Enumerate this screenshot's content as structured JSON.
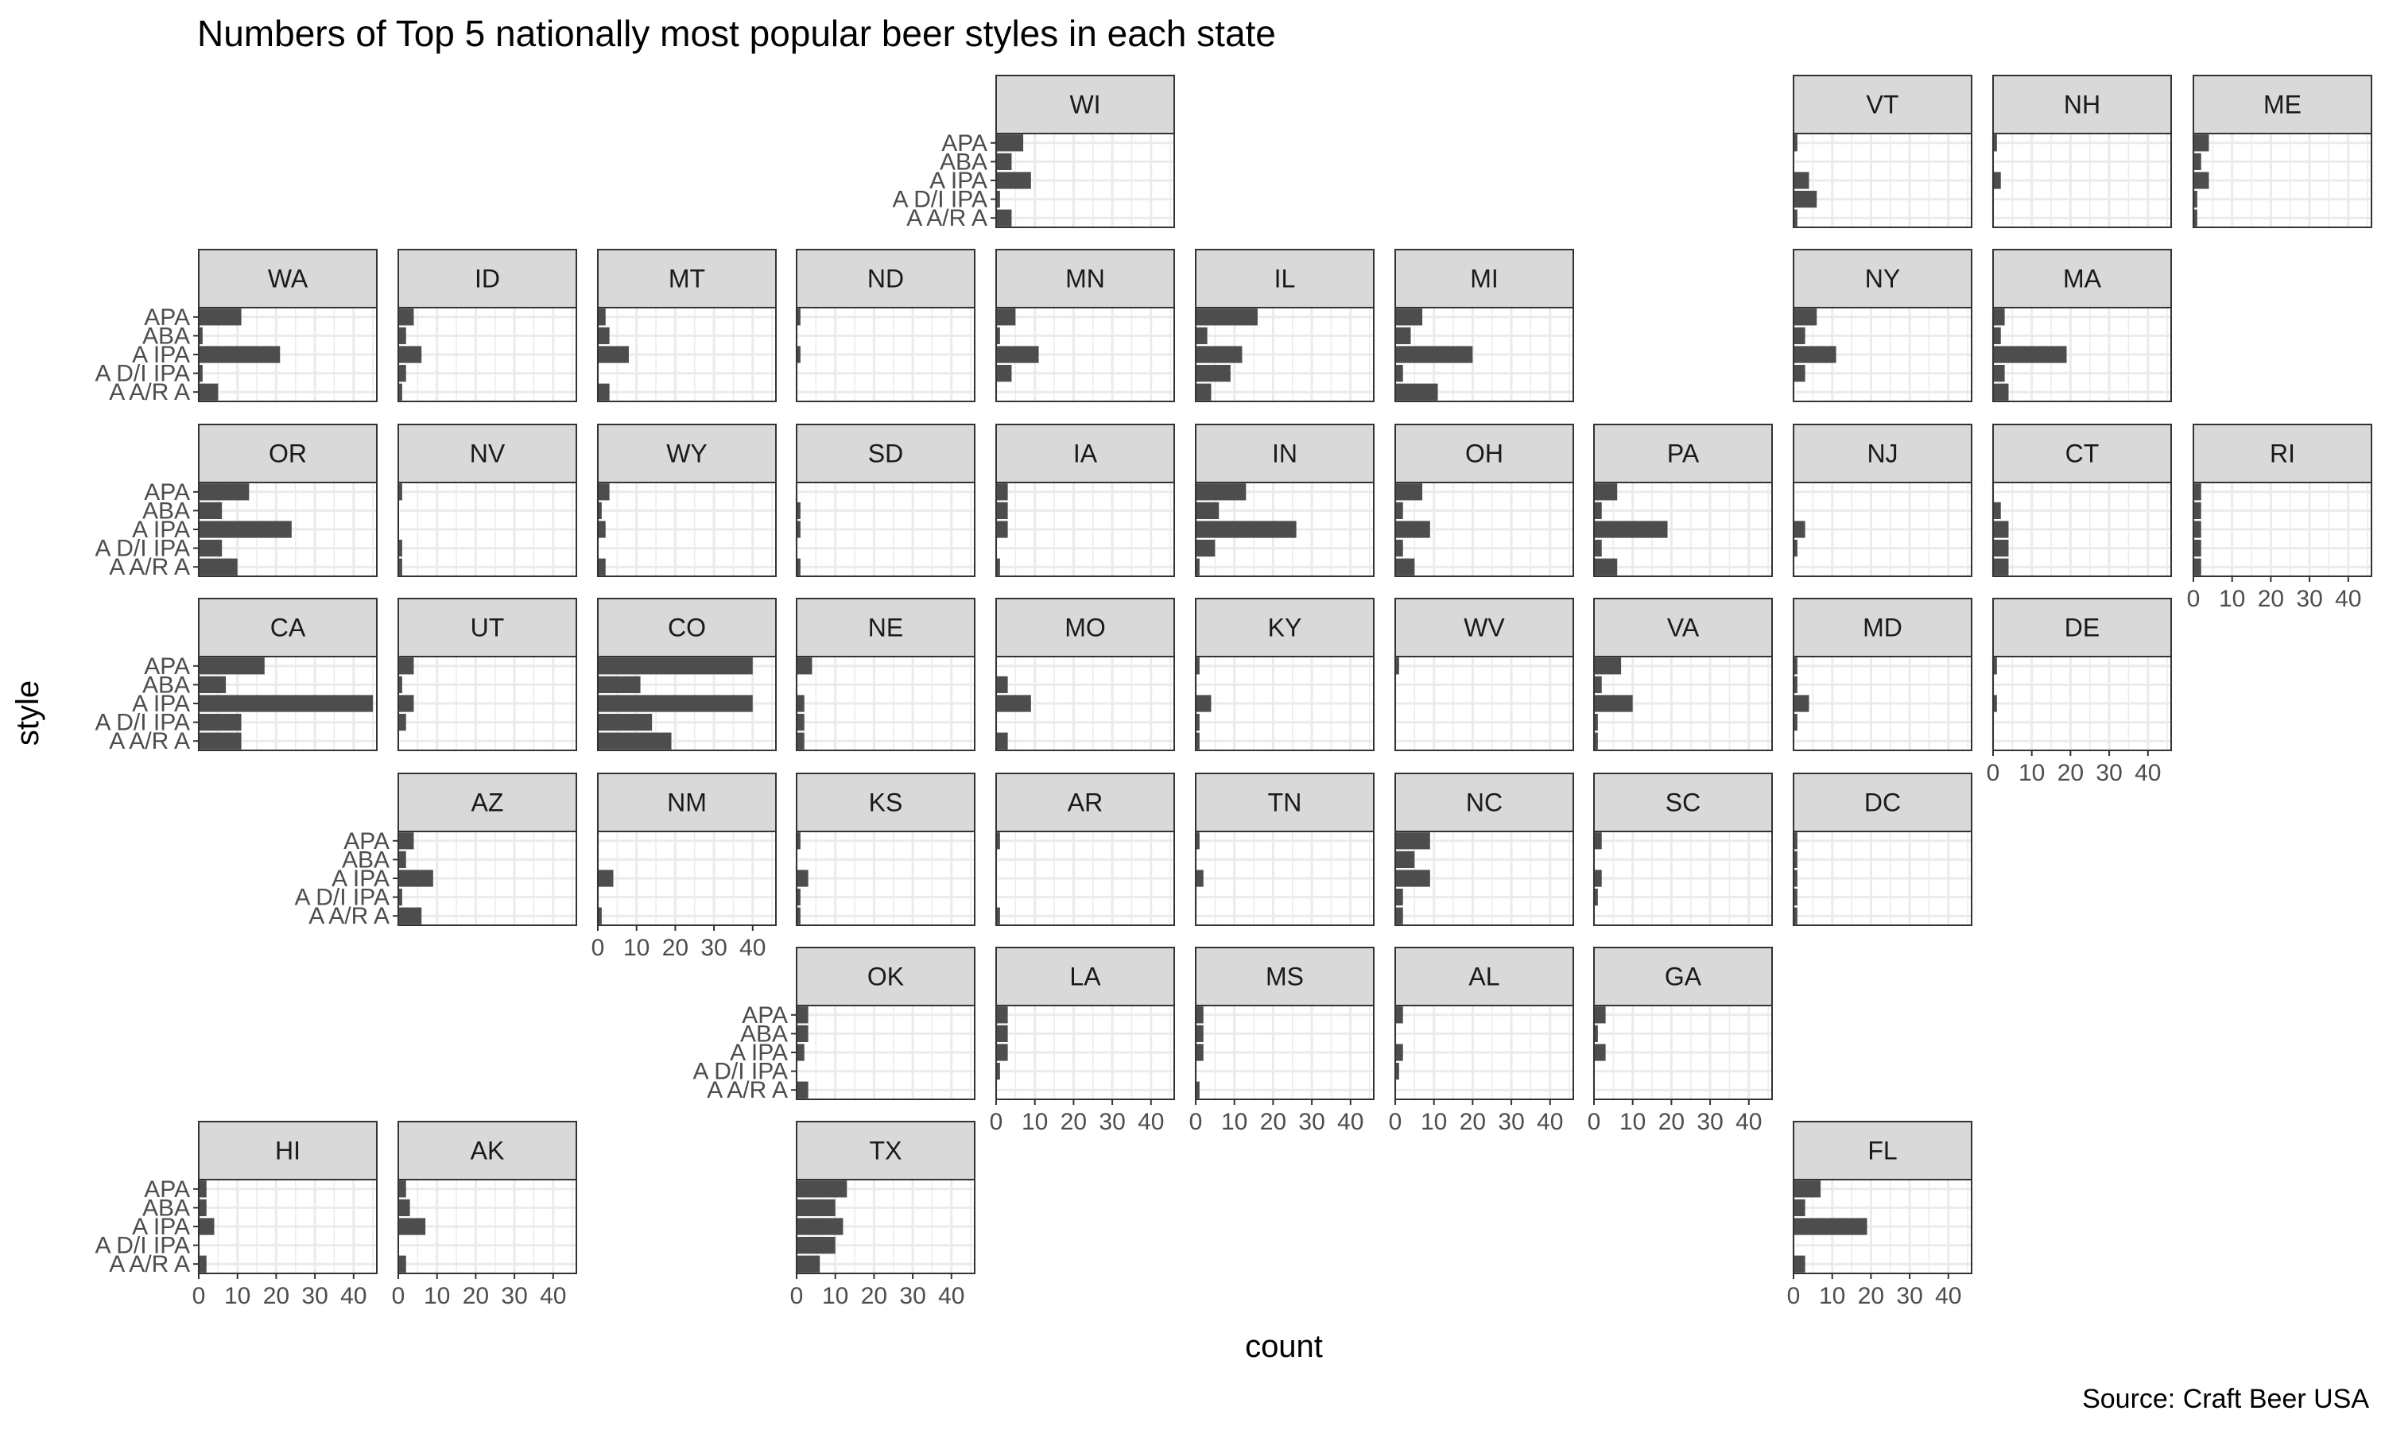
{
  "chart_data": {
    "type": "bar",
    "orientation": "horizontal",
    "layout": "facet_geo_us_states",
    "title": "Numbers of Top 5 nationally most popular beer styles in each state",
    "xlabel": "count",
    "ylabel": "style",
    "caption": "Source: Craft Beer USA",
    "xlim": [
      0,
      46
    ],
    "x_ticks": [
      0,
      10,
      20,
      30,
      40
    ],
    "x_tick_labels": [
      "0",
      "10",
      "20",
      "30",
      "40"
    ],
    "categories": [
      "APA",
      "ABA",
      "A IPA",
      "A D/I IPA",
      "A A/R A"
    ],
    "category_labels": [
      "APA",
      "ABA",
      "A IPA",
      "A D/I IPA",
      "A A/R A"
    ],
    "grid": true,
    "bar_color": "#4d4d4d",
    "strip_color": "#d9d9d9",
    "panel_border_color": "#333333",
    "grid_color": "#ebebeb",
    "panels": [
      {
        "state": "WI",
        "values": [
          7,
          4,
          9,
          1,
          4
        ]
      },
      {
        "state": "VT",
        "values": [
          1,
          0,
          4,
          6,
          1
        ]
      },
      {
        "state": "NH",
        "values": [
          1,
          0,
          2,
          0,
          0
        ]
      },
      {
        "state": "ME",
        "values": [
          4,
          2,
          4,
          1,
          1
        ]
      },
      {
        "state": "WA",
        "values": [
          11,
          1,
          21,
          1,
          5
        ]
      },
      {
        "state": "ID",
        "values": [
          4,
          2,
          6,
          2,
          1
        ]
      },
      {
        "state": "MT",
        "values": [
          2,
          3,
          8,
          0,
          3
        ]
      },
      {
        "state": "ND",
        "values": [
          1,
          0,
          1,
          0,
          0
        ]
      },
      {
        "state": "MN",
        "values": [
          5,
          1,
          11,
          4,
          0
        ]
      },
      {
        "state": "IL",
        "values": [
          16,
          3,
          12,
          9,
          4
        ]
      },
      {
        "state": "MI",
        "values": [
          7,
          4,
          20,
          2,
          11
        ]
      },
      {
        "state": "NY",
        "values": [
          6,
          3,
          11,
          3,
          0
        ]
      },
      {
        "state": "MA",
        "values": [
          3,
          2,
          19,
          3,
          4
        ]
      },
      {
        "state": "OR",
        "values": [
          13,
          6,
          24,
          6,
          10
        ]
      },
      {
        "state": "NV",
        "values": [
          1,
          0,
          0,
          1,
          1
        ]
      },
      {
        "state": "WY",
        "values": [
          3,
          1,
          2,
          0,
          2
        ]
      },
      {
        "state": "SD",
        "values": [
          0,
          1,
          1,
          0,
          1
        ]
      },
      {
        "state": "IA",
        "values": [
          3,
          3,
          3,
          0,
          1
        ]
      },
      {
        "state": "IN",
        "values": [
          13,
          6,
          26,
          5,
          1
        ]
      },
      {
        "state": "OH",
        "values": [
          7,
          2,
          9,
          2,
          5
        ]
      },
      {
        "state": "PA",
        "values": [
          6,
          2,
          19,
          2,
          6
        ]
      },
      {
        "state": "NJ",
        "values": [
          0,
          0,
          3,
          1,
          0
        ]
      },
      {
        "state": "CT",
        "values": [
          0,
          2,
          4,
          4,
          4
        ]
      },
      {
        "state": "RI",
        "values": [
          2,
          2,
          2,
          2,
          2
        ]
      },
      {
        "state": "CA",
        "values": [
          17,
          7,
          45,
          11,
          11
        ]
      },
      {
        "state": "UT",
        "values": [
          4,
          1,
          4,
          2,
          0
        ]
      },
      {
        "state": "CO",
        "values": [
          40,
          11,
          40,
          14,
          19
        ]
      },
      {
        "state": "NE",
        "values": [
          4,
          0,
          2,
          2,
          2
        ]
      },
      {
        "state": "MO",
        "values": [
          0,
          3,
          9,
          0,
          3
        ]
      },
      {
        "state": "KY",
        "values": [
          1,
          0,
          4,
          1,
          1
        ]
      },
      {
        "state": "WV",
        "values": [
          1,
          0,
          0,
          0,
          0
        ]
      },
      {
        "state": "VA",
        "values": [
          7,
          2,
          10,
          1,
          1
        ]
      },
      {
        "state": "MD",
        "values": [
          1,
          1,
          4,
          1,
          0
        ]
      },
      {
        "state": "DE",
        "values": [
          1,
          0,
          1,
          0,
          0
        ]
      },
      {
        "state": "AZ",
        "values": [
          4,
          2,
          9,
          1,
          6
        ]
      },
      {
        "state": "NM",
        "values": [
          0,
          0,
          4,
          0,
          1
        ]
      },
      {
        "state": "KS",
        "values": [
          1,
          0,
          3,
          1,
          1
        ]
      },
      {
        "state": "AR",
        "values": [
          1,
          0,
          0,
          0,
          1
        ]
      },
      {
        "state": "TN",
        "values": [
          1,
          0,
          2,
          0,
          0
        ]
      },
      {
        "state": "NC",
        "values": [
          9,
          5,
          9,
          2,
          2
        ]
      },
      {
        "state": "SC",
        "values": [
          2,
          0,
          2,
          1,
          0
        ]
      },
      {
        "state": "DC",
        "values": [
          1,
          1,
          1,
          1,
          1
        ]
      },
      {
        "state": "OK",
        "values": [
          3,
          3,
          2,
          0,
          3
        ]
      },
      {
        "state": "LA",
        "values": [
          3,
          3,
          3,
          1,
          0
        ]
      },
      {
        "state": "MS",
        "values": [
          2,
          2,
          2,
          0,
          1
        ]
      },
      {
        "state": "AL",
        "values": [
          2,
          0,
          2,
          1,
          0
        ]
      },
      {
        "state": "GA",
        "values": [
          3,
          1,
          3,
          0,
          0
        ]
      },
      {
        "state": "HI",
        "values": [
          2,
          2,
          4,
          0,
          2
        ]
      },
      {
        "state": "AK",
        "values": [
          2,
          3,
          7,
          0,
          2
        ]
      },
      {
        "state": "TX",
        "values": [
          13,
          10,
          12,
          10,
          6
        ]
      },
      {
        "state": "FL",
        "values": [
          7,
          3,
          19,
          0,
          3
        ]
      }
    ]
  }
}
